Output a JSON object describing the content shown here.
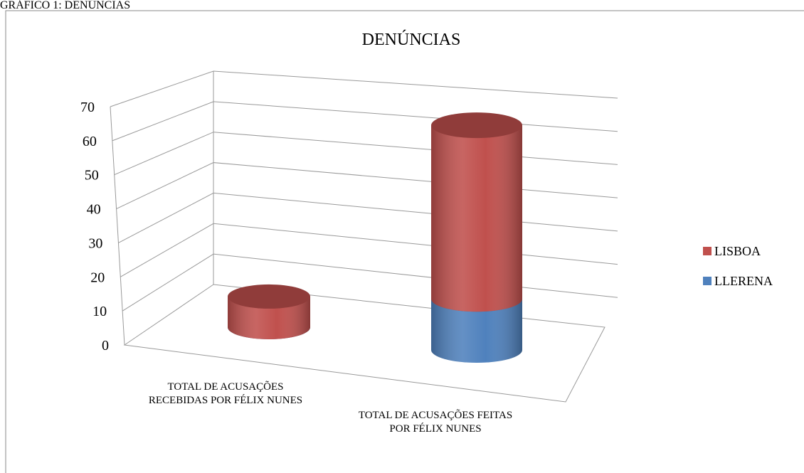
{
  "caption": "GRÁFICO 1: DENÚNCIAS",
  "chart_data": {
    "type": "bar3d-cylinder-stacked",
    "title": "DENÚNCIAS",
    "categories": [
      "TOTAL DE ACUSAÇÕES RECEBIDAS POR FÉLIX NUNES",
      "TOTAL DE ACUSAÇÕES FEITAS POR FÉLIX NUNES"
    ],
    "series": [
      {
        "name": "LISBOA",
        "color": "#c0504d",
        "values": [
          9,
          51
        ]
      },
      {
        "name": "LLERENA",
        "color": "#4f81bd",
        "values": [
          0,
          15
        ]
      }
    ],
    "ylim": [
      0,
      70
    ],
    "yticks": [
      0,
      10,
      20,
      30,
      40,
      50,
      60,
      70
    ],
    "grid": true,
    "legend": "right",
    "stacked": true
  }
}
